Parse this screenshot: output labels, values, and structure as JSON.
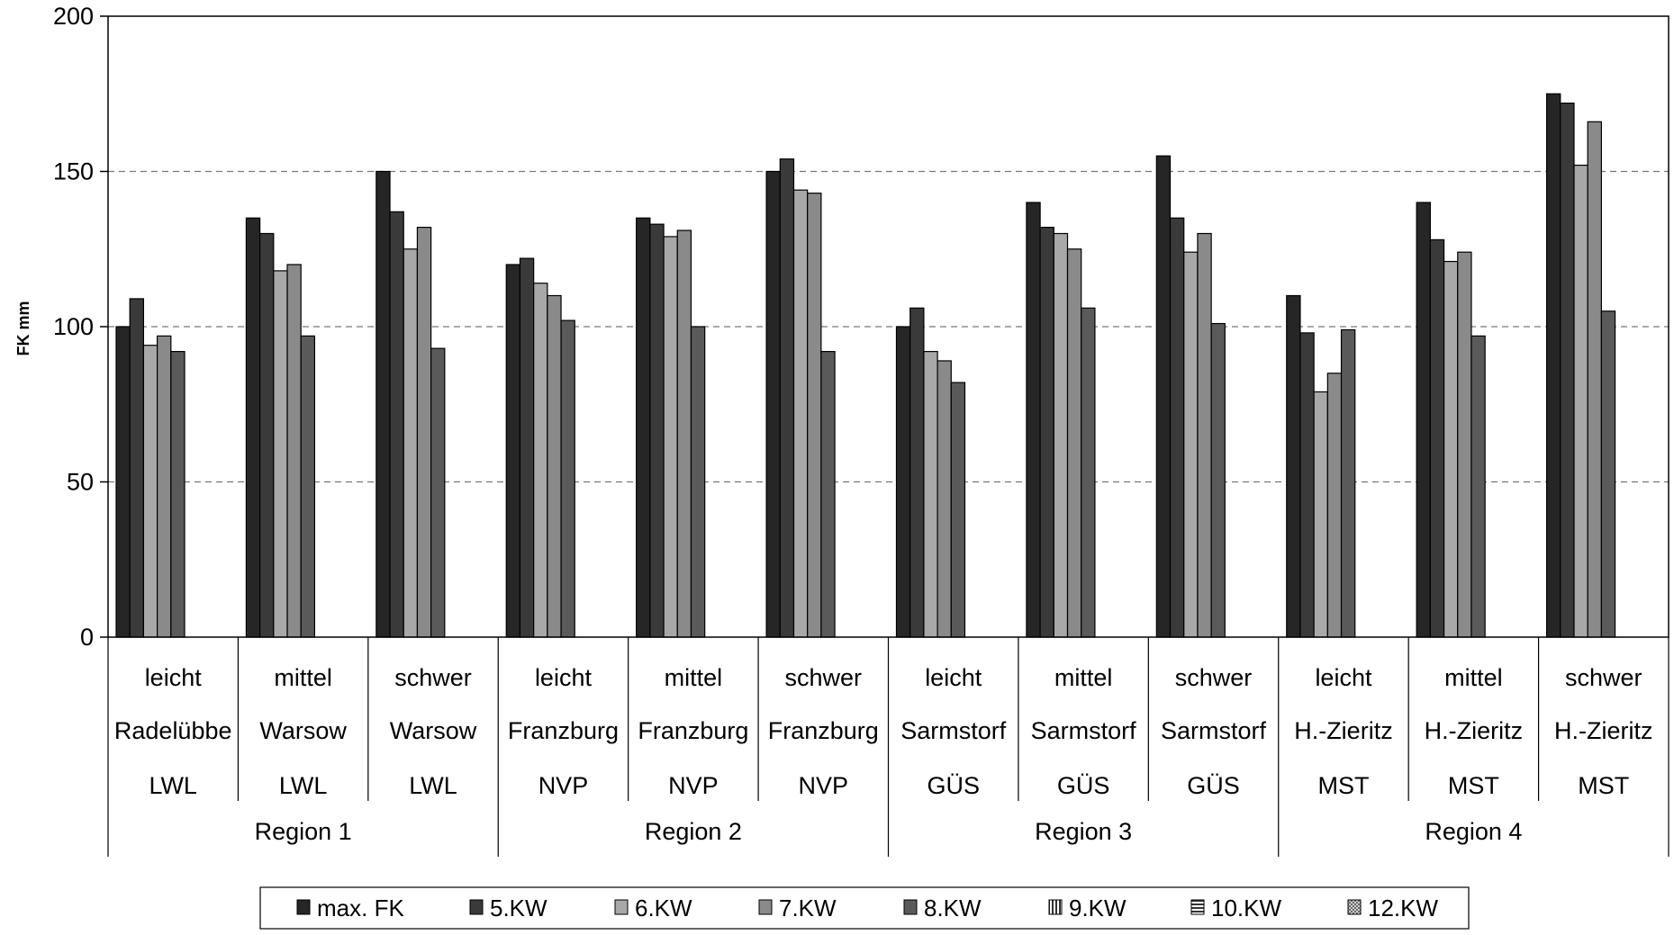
{
  "chart_data": {
    "type": "bar",
    "title": "",
    "xlabel": "",
    "ylabel": "FK mm",
    "ylim": [
      0,
      200
    ],
    "yticks": [
      0,
      50,
      100,
      150,
      200
    ],
    "grid": "horizontal dashed at 50, 100, 150",
    "legend_position": "bottom",
    "categories": [
      {
        "level1": "leicht",
        "level2": "Radelübbe",
        "level3": "LWL"
      },
      {
        "level1": "mittel",
        "level2": "Warsow",
        "level3": "LWL"
      },
      {
        "level1": "schwer",
        "level2": "Warsow",
        "level3": "LWL"
      },
      {
        "level1": "leicht",
        "level2": "Franzburg",
        "level3": "NVP"
      },
      {
        "level1": "mittel",
        "level2": "Franzburg",
        "level3": "NVP"
      },
      {
        "level1": "schwer",
        "level2": "Franzburg",
        "level3": "NVP"
      },
      {
        "level1": "leicht",
        "level2": "Sarmstorf",
        "level3": "GÜS"
      },
      {
        "level1": "mittel",
        "level2": "Sarmstorf",
        "level3": "GÜS"
      },
      {
        "level1": "schwer",
        "level2": "Sarmstorf",
        "level3": "GÜS"
      },
      {
        "level1": "leicht",
        "level2": "H.-Zieritz",
        "level3": "MST"
      },
      {
        "level1": "mittel",
        "level2": "H.-Zieritz",
        "level3": "MST"
      },
      {
        "level1": "schwer",
        "level2": "H.-Zieritz",
        "level3": "MST"
      }
    ],
    "regions": [
      {
        "label": "Region 1",
        "span": [
          0,
          2
        ]
      },
      {
        "label": "Region 2",
        "span": [
          3,
          5
        ]
      },
      {
        "label": "Region 3",
        "span": [
          6,
          8
        ]
      },
      {
        "label": "Region 4",
        "span": [
          9,
          11
        ]
      }
    ],
    "series": [
      {
        "name": "max. FK",
        "color": "#262626",
        "values": [
          100,
          135,
          150,
          120,
          135,
          150,
          100,
          140,
          155,
          110,
          140,
          175
        ]
      },
      {
        "name": "5.KW",
        "color": "#3a3a3a",
        "values": [
          109,
          130,
          137,
          122,
          133,
          154,
          106,
          132,
          135,
          98,
          128,
          172
        ]
      },
      {
        "name": "6.KW",
        "color": "#9a9a9a",
        "values": [
          94,
          118,
          125,
          114,
          129,
          144,
          92,
          130,
          124,
          79,
          121,
          152
        ]
      },
      {
        "name": "7.KW",
        "color": "#8e8e8e",
        "values": [
          97,
          120,
          132,
          110,
          131,
          143,
          89,
          125,
          130,
          85,
          124,
          166
        ]
      },
      {
        "name": "8.KW",
        "color": "#5a5a5a",
        "values": [
          92,
          97,
          93,
          102,
          100,
          92,
          82,
          106,
          101,
          99,
          97,
          105
        ]
      },
      {
        "name": "9.KW",
        "color": "#777777",
        "values": [
          null,
          null,
          null,
          null,
          null,
          null,
          null,
          null,
          null,
          null,
          null,
          null
        ]
      },
      {
        "name": "10.KW",
        "color": "#666666",
        "values": [
          null,
          null,
          null,
          null,
          null,
          null,
          null,
          null,
          null,
          null,
          null,
          null
        ]
      },
      {
        "name": "12.KW",
        "color": "#b5b5b5",
        "values": [
          null,
          null,
          null,
          null,
          null,
          null,
          null,
          null,
          null,
          null,
          null,
          null
        ]
      }
    ]
  }
}
